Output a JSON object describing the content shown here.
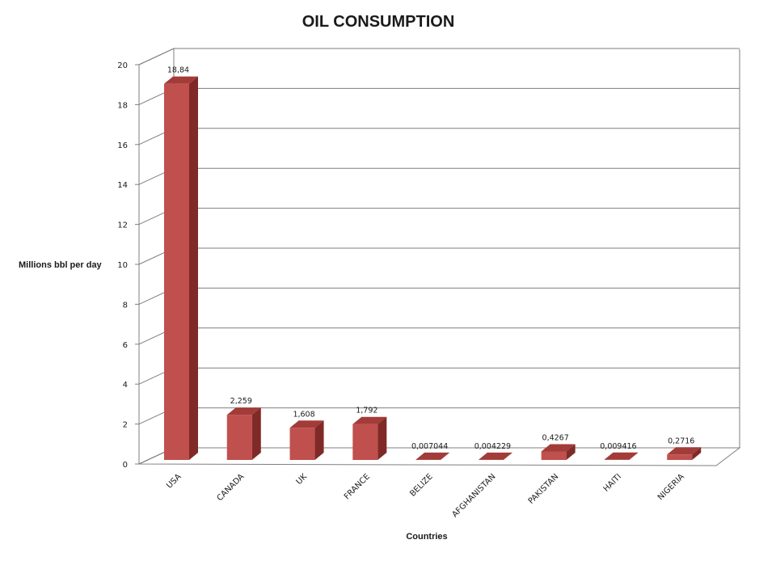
{
  "chart_data": {
    "type": "bar",
    "title": "OIL CONSUMPTION",
    "xlabel": "Countries",
    "ylabel": "Millions  bbl  per day",
    "ylim": [
      0,
      20
    ],
    "yticks": [
      0,
      2,
      4,
      6,
      8,
      10,
      12,
      14,
      16,
      18,
      20
    ],
    "grid": true,
    "categories": [
      "USA",
      "CANADA",
      "UK",
      "FRANCE",
      "BELIZE",
      "AFGHANISTAN",
      "PAKISTAN",
      "HAITI",
      "NIGERIA"
    ],
    "values": [
      18.84,
      2.259,
      1.608,
      1.792,
      0.007044,
      0.004229,
      0.4267,
      0.009416,
      0.2716
    ],
    "data_labels": [
      "18,84",
      "2,259",
      "1,608",
      "1,792",
      "0,007044",
      "0,004229",
      "0,4267",
      "0,009416",
      "0,2716"
    ],
    "colors": {
      "bar_front": "#c0504d",
      "bar_top": "#a33b38",
      "bar_side": "#7f2a27",
      "grid": "#7f7f7f",
      "wall": "#ffffff"
    }
  }
}
